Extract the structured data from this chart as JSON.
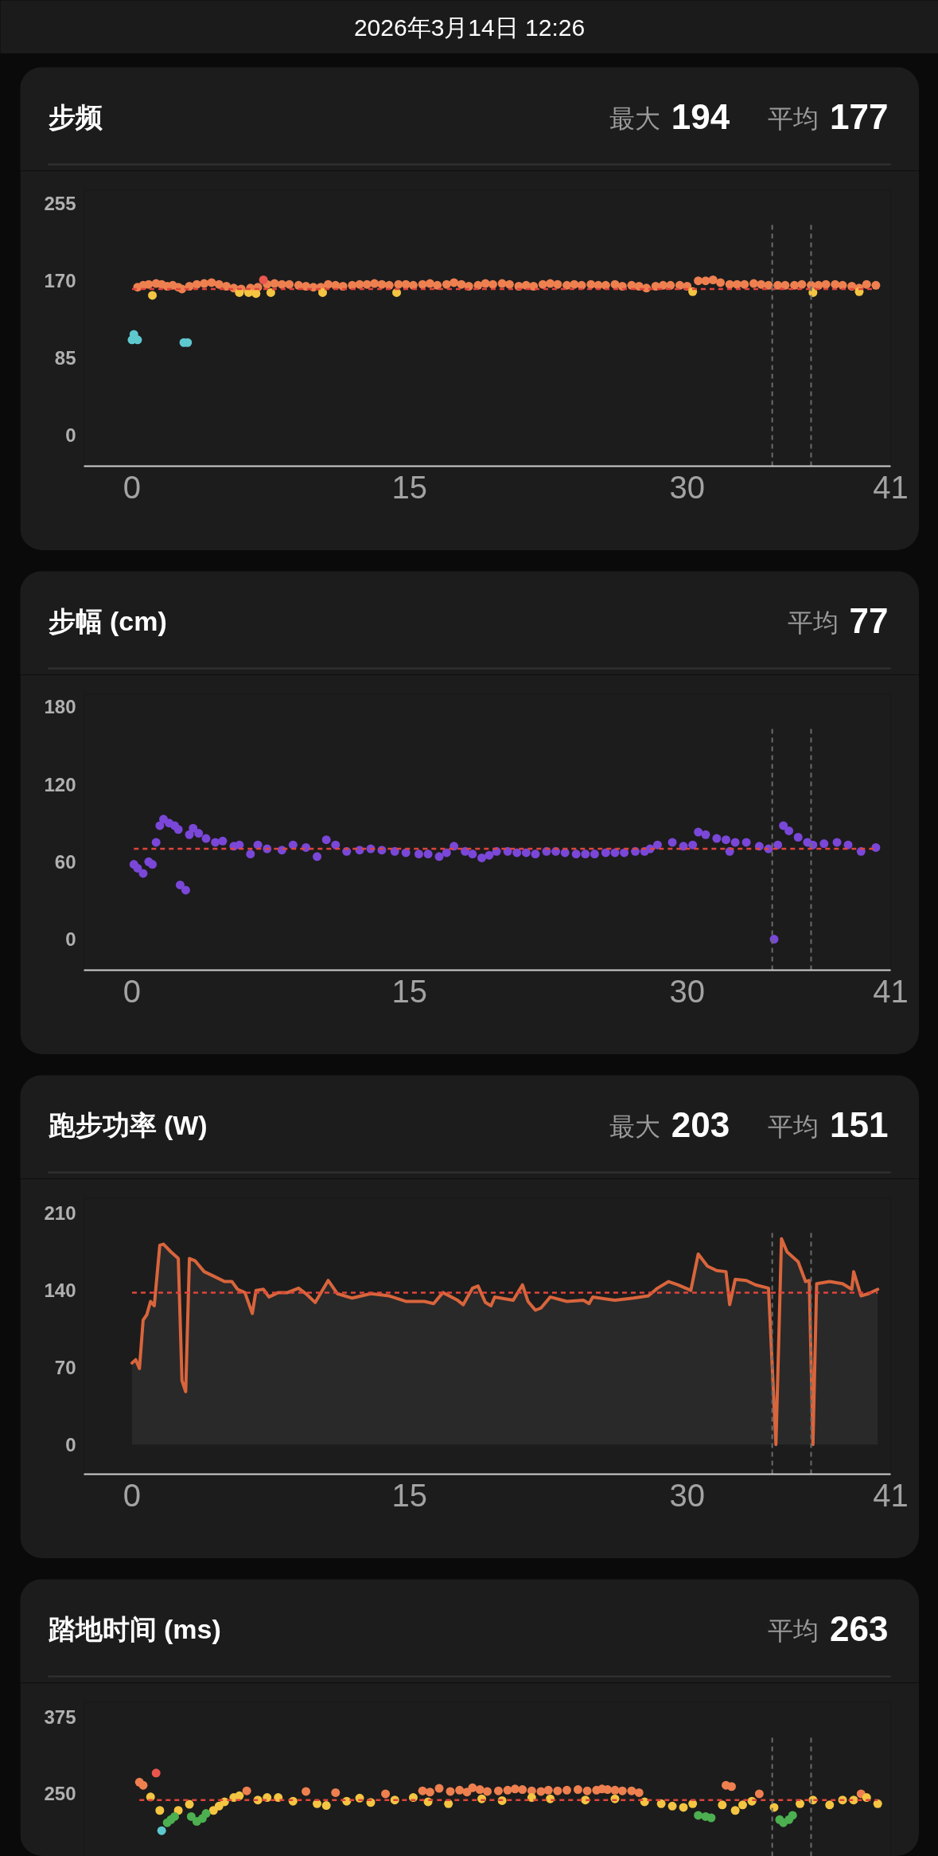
{
  "chart_data": [
    {
      "type": "other",
      "title": "2026年3月14日 12:26"
    },
    {
      "type": "scatter",
      "title": "步频",
      "annotations": [
        "最大 194",
        "平均 177"
      ],
      "marker": "circle",
      "xlim": [
        -2.6,
        41
      ],
      "xticks": [
        0,
        15,
        30,
        41
      ],
      "ylim": [
        -34,
        270
      ],
      "yticks": [
        0,
        85,
        170,
        255
      ],
      "series": [
        {
          "color": "#ee8050",
          "x": [
            0.3,
            0.6,
            0.9,
            1.3,
            1.6,
            1.9,
            2.2,
            2.5,
            2.7,
            3.1,
            3.5,
            3.9,
            4.3,
            4.7,
            5.1,
            5.5,
            5.9,
            6.4,
            6.8,
            7.3,
            7.7,
            8.1,
            8.5,
            9.0,
            9.4,
            9.8,
            10.2,
            10.6,
            11.0,
            11.4,
            11.9,
            12.3,
            12.7,
            13.1,
            13.5,
            13.9,
            14.4,
            14.8,
            15.2,
            15.7,
            16.1,
            16.5,
            17.0,
            17.4,
            17.8,
            18.2,
            18.7,
            19.1,
            19.5,
            20.0,
            20.4,
            20.9,
            21.3,
            21.7,
            22.2,
            22.6,
            23.0,
            23.5,
            23.9,
            24.3,
            24.8,
            25.2,
            25.6,
            26.1,
            26.5,
            27.0,
            27.4,
            27.8,
            28.3,
            28.7,
            29.1,
            29.6,
            30.0,
            30.6,
            31.0,
            31.4,
            31.8,
            32.3,
            32.7,
            33.1,
            33.6,
            34.0,
            34.4,
            34.9,
            35.3,
            35.8,
            36.2,
            36.7,
            37.1,
            37.5,
            38.0,
            38.4,
            38.9,
            39.3,
            39.7,
            40.2
          ],
          "values": [
            163,
            165,
            166,
            167,
            166,
            164,
            165,
            163,
            161,
            164,
            166,
            167,
            168,
            166,
            164,
            162,
            161,
            162,
            163,
            166,
            167,
            166,
            166,
            165,
            164,
            163,
            163,
            166,
            165,
            164,
            165,
            166,
            166,
            167,
            166,
            165,
            166,
            166,
            165,
            166,
            167,
            165,
            166,
            168,
            166,
            164,
            165,
            167,
            166,
            167,
            166,
            164,
            165,
            164,
            166,
            167,
            166,
            165,
            166,
            165,
            166,
            165,
            165,
            166,
            164,
            165,
            164,
            162,
            164,
            165,
            165,
            165,
            164,
            170,
            170,
            171,
            168,
            166,
            166,
            166,
            167,
            166,
            165,
            165,
            165,
            165,
            166,
            165,
            165,
            166,
            166,
            165,
            164,
            162,
            166,
            165
          ]
        },
        {
          "color": "#f4c542",
          "x": [
            1.1,
            5.8,
            6.3,
            6.7,
            7.5,
            10.3,
            14.3,
            30.3,
            36.8,
            39.3
          ],
          "values": [
            154,
            157,
            157,
            156,
            157,
            157,
            157,
            158,
            157,
            158
          ]
        },
        {
          "color": "#e8564e",
          "x": [
            7.1
          ],
          "values": [
            171
          ]
        },
        {
          "color": "#5ec8cf",
          "x": [
            0.0,
            0.1,
            0.3,
            2.8,
            3.0
          ],
          "values": [
            105,
            111,
            105,
            102,
            102
          ]
        }
      ],
      "ref_lines": [
        {
          "axis": "y",
          "value": 161,
          "color": "#e0443c",
          "line_style": "dashed"
        },
        {
          "axis": "x",
          "value": 34.6,
          "color": "#6b6b6b",
          "line_style": "dashed"
        },
        {
          "axis": "x",
          "value": 36.7,
          "color": "#6b6b6b",
          "line_style": "dashed"
        }
      ]
    },
    {
      "type": "scatter",
      "title": "步幅 (cm)",
      "annotations": [
        "平均 77"
      ],
      "marker": "circle",
      "xlim": [
        -2.6,
        41
      ],
      "xticks": [
        0,
        15,
        30,
        41
      ],
      "ylim": [
        -24,
        190
      ],
      "yticks": [
        0,
        60,
        120,
        180
      ],
      "series": [
        {
          "color": "#7a47d8",
          "x": [
            0.1,
            0.3,
            0.6,
            0.9,
            1.1,
            1.3,
            1.5,
            1.7,
            2.0,
            2.3,
            2.5,
            2.6,
            2.9,
            3.1,
            3.3,
            3.6,
            4.0,
            4.5,
            4.9,
            5.5,
            5.8,
            6.4,
            6.8,
            7.3,
            8.1,
            8.7,
            9.4,
            10.0,
            10.5,
            11.0,
            11.6,
            12.3,
            12.9,
            13.5,
            14.2,
            14.8,
            15.5,
            16.0,
            16.6,
            17.0,
            17.4,
            18.0,
            18.4,
            18.9,
            19.3,
            19.7,
            20.3,
            20.8,
            21.3,
            21.8,
            22.4,
            22.9,
            23.4,
            24.0,
            24.5,
            25.0,
            25.6,
            26.1,
            26.6,
            27.2,
            27.7,
            28.0,
            28.4,
            29.2,
            29.8,
            30.3,
            30.6,
            31.0,
            31.6,
            32.1,
            32.3,
            32.6,
            33.2,
            33.9,
            34.4,
            34.7,
            34.9,
            35.2,
            35.5,
            36.0,
            36.5,
            36.8,
            37.4,
            38.1,
            38.7,
            39.4,
            40.2
          ],
          "values": [
            58,
            55,
            51,
            60,
            58,
            75,
            88,
            93,
            90,
            88,
            85,
            42,
            38,
            81,
            86,
            82,
            78,
            75,
            76,
            72,
            73,
            66,
            73,
            70,
            69,
            73,
            71,
            64,
            77,
            73,
            68,
            69,
            70,
            69,
            68,
            67,
            66,
            66,
            64,
            67,
            72,
            68,
            66,
            63,
            65,
            68,
            68,
            67,
            67,
            66,
            68,
            68,
            67,
            66,
            66,
            66,
            67,
            67,
            67,
            68,
            68,
            70,
            73,
            75,
            72,
            73,
            83,
            81,
            78,
            77,
            68,
            75,
            75,
            72,
            70,
            0,
            73,
            88,
            84,
            79,
            75,
            73,
            74,
            75,
            73,
            68,
            71
          ]
        }
      ],
      "ref_lines": [
        {
          "axis": "y",
          "value": 70,
          "color": "#e0443c",
          "line_style": "dashed"
        },
        {
          "axis": "x",
          "value": 34.6,
          "color": "#6b6b6b",
          "line_style": "dashed"
        },
        {
          "axis": "x",
          "value": 36.7,
          "color": "#6b6b6b",
          "line_style": "dashed"
        }
      ]
    },
    {
      "type": "area",
      "title": "跑步功率 (W)",
      "annotations": [
        "最大 203",
        "平均 151"
      ],
      "xlim": [
        -2.6,
        41
      ],
      "xticks": [
        0,
        15,
        30,
        41
      ],
      "ylim": [
        -27,
        224
      ],
      "yticks": [
        0,
        70,
        140,
        210
      ],
      "series": [
        {
          "color": "#d9653c",
          "x": [
            0.0,
            0.2,
            0.4,
            0.6,
            0.8,
            1.0,
            1.2,
            1.5,
            1.7,
            2.1,
            2.5,
            2.7,
            2.9,
            3.1,
            3.4,
            3.9,
            4.4,
            5.0,
            5.4,
            5.7,
            6.1,
            6.5,
            6.7,
            7.1,
            7.4,
            7.9,
            8.4,
            9.0,
            9.4,
            9.9,
            10.6,
            11.1,
            11.9,
            12.9,
            13.9,
            14.8,
            15.8,
            16.3,
            16.8,
            17.6,
            17.9,
            18.4,
            18.7,
            19.1,
            19.4,
            19.6,
            20.6,
            21.1,
            21.4,
            21.8,
            22.1,
            22.6,
            23.5,
            24.4,
            24.7,
            24.9,
            26.1,
            27.1,
            27.9,
            28.4,
            29.0,
            29.5,
            30.2,
            30.6,
            31.1,
            31.6,
            32.1,
            32.3,
            32.6,
            33.2,
            33.7,
            34.4,
            34.8,
            35.1,
            35.4,
            36.0,
            36.4,
            36.6,
            36.8,
            37.0,
            37.7,
            38.4,
            38.9,
            39.0,
            39.4,
            39.8,
            40.3
          ],
          "values": [
            74,
            77,
            69,
            113,
            118,
            130,
            126,
            181,
            182,
            175,
            169,
            58,
            48,
            169,
            167,
            157,
            153,
            148,
            148,
            141,
            138,
            119,
            140,
            141,
            134,
            138,
            138,
            142,
            137,
            129,
            149,
            137,
            133,
            137,
            135,
            130,
            130,
            128,
            138,
            131,
            127,
            142,
            144,
            129,
            126,
            134,
            131,
            145,
            130,
            122,
            124,
            134,
            130,
            131,
            128,
            134,
            131,
            133,
            135,
            142,
            148,
            145,
            140,
            173,
            162,
            158,
            157,
            127,
            150,
            149,
            145,
            142,
            0,
            187,
            175,
            166,
            148,
            149,
            0,
            146,
            148,
            146,
            141,
            157,
            135,
            137,
            141
          ]
        }
      ],
      "ref_lines": [
        {
          "axis": "y",
          "value": 138,
          "color": "#e0443c",
          "line_style": "dashed"
        },
        {
          "axis": "x",
          "value": 34.6,
          "color": "#6b6b6b",
          "line_style": "dashed"
        },
        {
          "axis": "x",
          "value": 36.7,
          "color": "#6b6b6b",
          "line_style": "dashed"
        }
      ]
    },
    {
      "type": "scatter",
      "title": "踏地时间 (ms)",
      "annotations": [
        "平均 263"
      ],
      "marker": "circle",
      "tick_labels": "y",
      "xlim": [
        -2.6,
        41
      ],
      "ylim": [
        148,
        400
      ],
      "yticks": [
        250,
        375
      ],
      "series": [
        {
          "color": "#ee8050",
          "x": [
            0.4,
            0.6,
            6.2,
            9.4,
            11.0,
            13.7,
            15.7,
            16.1,
            16.6,
            17.2,
            17.7,
            18.1,
            18.4,
            18.8,
            19.2,
            19.8,
            20.3,
            20.7,
            21.1,
            21.6,
            22.1,
            22.5,
            23.0,
            23.5,
            24.1,
            24.6,
            25.1,
            25.4,
            25.7,
            26.1,
            26.5,
            27.0,
            27.4,
            32.1,
            32.4,
            33.9,
            39.4
          ],
          "values": [
            269,
            264,
            255,
            254,
            252,
            250,
            255,
            253,
            259,
            254,
            256,
            253,
            260,
            257,
            254,
            255,
            256,
            258,
            257,
            255,
            254,
            256,
            255,
            256,
            257,
            255,
            256,
            258,
            257,
            256,
            255,
            255,
            252,
            264,
            262,
            250,
            250
          ]
        },
        {
          "color": "#f4c542",
          "x": [
            1.0,
            1.5,
            2.5,
            3.1,
            4.4,
            4.7,
            5.0,
            5.5,
            5.8,
            6.8,
            7.3,
            7.9,
            8.7,
            10.0,
            10.5,
            11.6,
            12.3,
            12.9,
            14.2,
            15.2,
            16.0,
            17.1,
            18.9,
            20.0,
            21.6,
            22.6,
            24.5,
            26.1,
            27.7,
            28.6,
            29.2,
            29.8,
            30.3,
            31.9,
            32.6,
            33.0,
            33.5,
            34.7,
            36.1,
            36.8,
            37.7,
            38.4,
            39.0,
            39.7,
            40.3
          ],
          "values": [
            245,
            223,
            223,
            233,
            223,
            230,
            237,
            244,
            247,
            240,
            244,
            244,
            238,
            234,
            231,
            238,
            243,
            236,
            240,
            244,
            237,
            234,
            242,
            239,
            244,
            242,
            240,
            242,
            237,
            234,
            230,
            228,
            234,
            232,
            223,
            232,
            238,
            228,
            234,
            240,
            232,
            240,
            240,
            244,
            234
          ]
        },
        {
          "color": "#4caf50",
          "x": [
            1.9,
            2.1,
            2.3,
            3.2,
            3.5,
            3.8,
            4.0,
            30.6,
            31.0,
            31.3,
            35.0,
            35.2,
            35.5,
            35.7
          ],
          "values": [
            203,
            208,
            213,
            213,
            205,
            210,
            218,
            215,
            213,
            211,
            208,
            203,
            208,
            215
          ]
        },
        {
          "color": "#e8564e",
          "x": [
            1.3
          ],
          "values": [
            284
          ]
        },
        {
          "color": "#5ec8cf",
          "x": [
            1.6
          ],
          "values": [
            190
          ]
        }
      ],
      "ref_lines": [
        {
          "axis": "y",
          "value": 240,
          "color": "#e0443c",
          "line_style": "dashed"
        },
        {
          "axis": "x",
          "value": 34.6,
          "color": "#6b6b6b",
          "line_style": "dashed"
        },
        {
          "axis": "x",
          "value": 36.7,
          "color": "#6b6b6b",
          "line_style": "dashed"
        }
      ]
    }
  ]
}
